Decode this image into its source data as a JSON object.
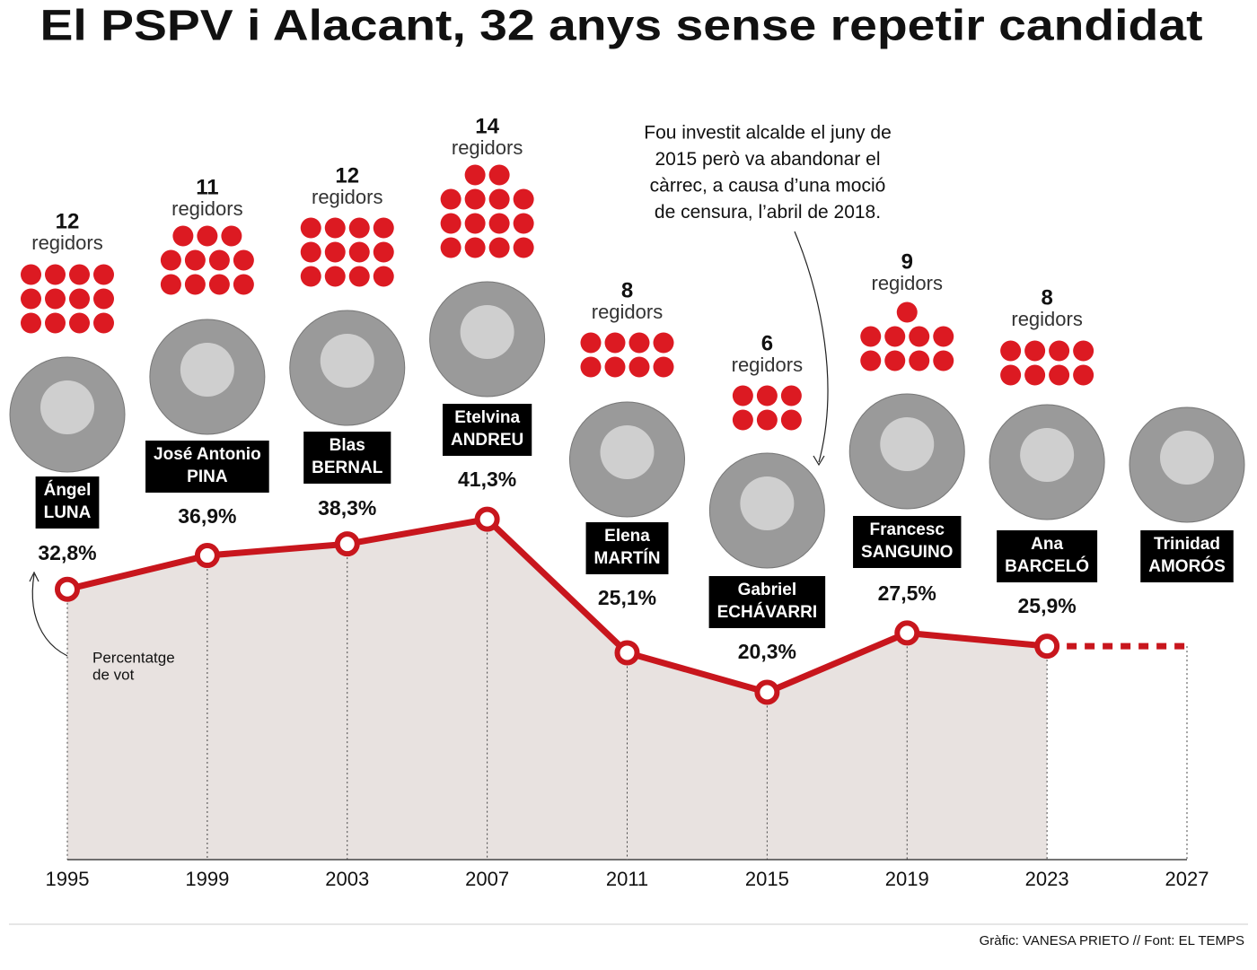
{
  "chart_data": {
    "type": "line",
    "title": "El PSPV i Alacant, 32 anys sense repetir candidat",
    "x": [
      1995,
      1999,
      2003,
      2007,
      2011,
      2015,
      2019,
      2023,
      2027
    ],
    "values": [
      32.8,
      36.9,
      38.3,
      41.3,
      25.1,
      20.3,
      27.5,
      25.9,
      null
    ],
    "value_labels": [
      "32,8%",
      "36,9%",
      "38,3%",
      "41,3%",
      "25,1%",
      "20,3%",
      "27,5%",
      "25,9%",
      null
    ],
    "color": "#c8161d",
    "area_color": "#e8e2e0",
    "xlim": [
      1995,
      2027
    ],
    "xticks": [
      1995,
      1999,
      2003,
      2007,
      2011,
      2015,
      2019,
      2023,
      2027
    ],
    "ylim": [
      0,
      70
    ],
    "candidates": [
      {
        "name": "Ángel",
        "surname": "LUNA"
      },
      {
        "name": "José Antonio",
        "surname": "PINA"
      },
      {
        "name": "Blas",
        "surname": "BERNAL"
      },
      {
        "name": "Etelvina",
        "surname": "ANDREU"
      },
      {
        "name": "Elena",
        "surname": "MARTÍN"
      },
      {
        "name": "Gabriel",
        "surname": "ECHÁVARRI"
      },
      {
        "name": "Francesc",
        "surname": "SANGUINO"
      },
      {
        "name": "Ana",
        "surname": "BARCELÓ"
      },
      {
        "name": "Trinidad",
        "surname": "AMORÓS"
      }
    ],
    "seats": [
      12,
      11,
      12,
      14,
      8,
      6,
      9,
      8,
      null
    ],
    "seats_label": "regidors",
    "seat_color": "#dc1a22",
    "annotations": {
      "echavarri": [
        "Fou investit alcalde el juny de",
        "2015 però va abandonar el",
        "càrrec, a causa d’una moció",
        "de censura, l’abril de 2018."
      ],
      "vote": [
        "Percentatge",
        "de vot"
      ]
    },
    "footer": "Gràfic: VANESA PRIETO // Font: EL TEMPS"
  }
}
